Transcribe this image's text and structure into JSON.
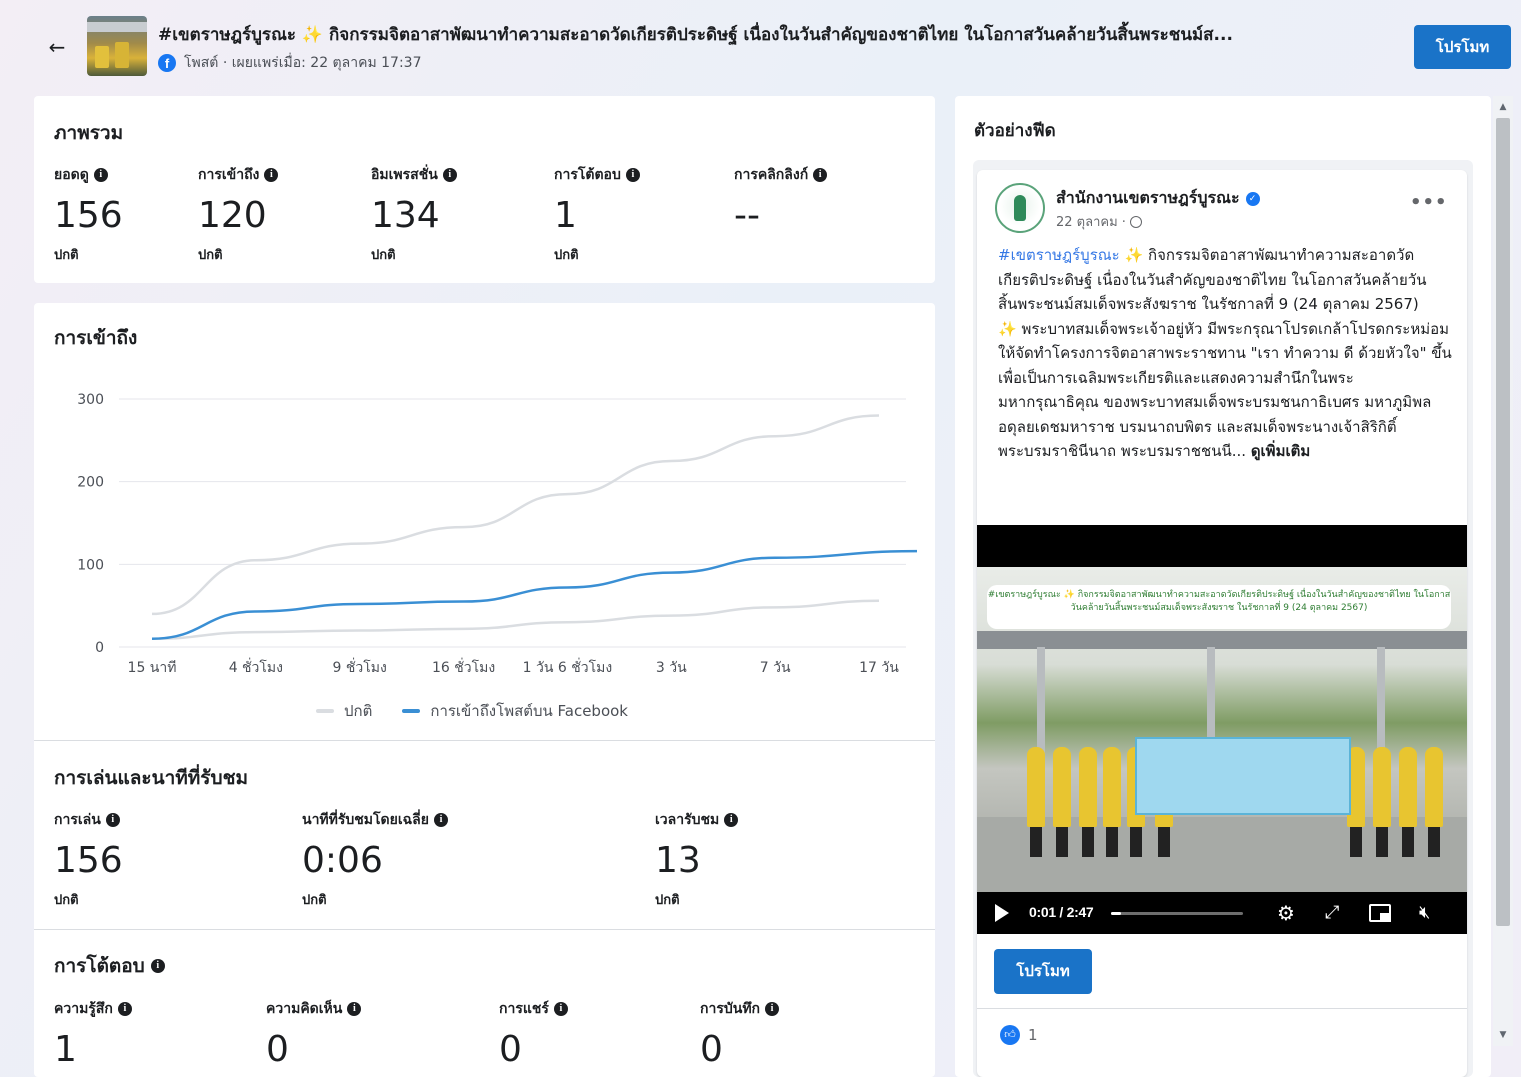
{
  "header": {
    "post_title": "#เขตราษฎร์บูรณะ ✨ กิจกรรมจิตอาสาพัฒนาทำความสะอาดวัดเกียรติประดิษฐ์ เนื่องในวันสำคัญของชาติไทย ในโอกาสวันคล้ายวันสิ้นพระชนม์ส...",
    "post_type": "โพสต์ · เผยแพร่เมื่อ: 22 ตุลาคม 17:37",
    "promote_label": "โปรโมท"
  },
  "overview": {
    "title": "ภาพรวม",
    "metrics": [
      {
        "label": "ยอดดู",
        "value": "156",
        "sub": "ปกติ"
      },
      {
        "label": "การเข้าถึง",
        "value": "120",
        "sub": "ปกติ"
      },
      {
        "label": "อิมเพรสชั่น",
        "value": "134",
        "sub": "ปกติ"
      },
      {
        "label": "การโต้ตอบ",
        "value": "1",
        "sub": "ปกติ"
      },
      {
        "label": "การคลิกลิงก์",
        "value": "--",
        "sub": ""
      }
    ]
  },
  "reach": {
    "title": "การเข้าถึง"
  },
  "chart_data": {
    "type": "line",
    "title": "การเข้าถึง",
    "x": [
      "15 นาที",
      "4 ชั่วโมง",
      "9 ชั่วโมง",
      "16 ชั่วโมง",
      "1 วัน 6 ชั่วโมง",
      "3 วัน",
      "7 วัน",
      "17 วัน"
    ],
    "yticks": [
      0,
      100,
      200,
      300
    ],
    "ylim": [
      0,
      300
    ],
    "grid": true,
    "legend_position": "bottom",
    "series": [
      {
        "name": "ปกติ",
        "color": "#dadde1",
        "band": "upper",
        "values": [
          40,
          105,
          125,
          145,
          185,
          225,
          255,
          280
        ]
      },
      {
        "name": "ปกติ",
        "color": "#dadde1",
        "band": "lower",
        "values": [
          10,
          18,
          20,
          22,
          30,
          38,
          48,
          56
        ]
      },
      {
        "name": "การเข้าถึงโพสต์บน Facebook",
        "color": "#3a8fd4",
        "values": [
          10,
          43,
          52,
          55,
          72,
          90,
          108,
          116
        ]
      }
    ],
    "legend": [
      {
        "label": "ปกติ",
        "color": "#dadde1"
      },
      {
        "label": "การเข้าถึงโพสต์บน Facebook",
        "color": "#3a8fd4"
      }
    ]
  },
  "plays": {
    "title": "การเล่นและนาทีที่รับชม",
    "metrics": [
      {
        "label": "การเล่น",
        "value": "156",
        "sub": "ปกติ"
      },
      {
        "label": "นาทีที่รับชมโดยเฉลี่ย",
        "value": "0:06",
        "sub": "ปกติ"
      },
      {
        "label": "เวลารับชม",
        "value": "13",
        "sub": "ปกติ"
      }
    ]
  },
  "engagement": {
    "title": "การโต้ตอบ",
    "metrics": [
      {
        "label": "ความรู้สึก",
        "value": "1"
      },
      {
        "label": "ความคิดเห็น",
        "value": "0"
      },
      {
        "label": "การแชร์",
        "value": "0"
      },
      {
        "label": "การบันทึก",
        "value": "0"
      }
    ]
  },
  "preview": {
    "title": "ตัวอย่างฟีด",
    "page_name": "สำนักงานเขตราษฎร์บูรณะ",
    "date": "22 ตุลาคม ·",
    "hashtag": "#เขตราษฎร์บูรณะ",
    "sparkle": "✨",
    "text_line1": " กิจกรรมจิตอาสาพัฒนาทำความสะอาดวัดเกียรติประดิษฐ์ เนื่องในวันสำคัญของชาติไทย ในโอกาสวันคล้ายวันสิ้นพระชนม์สมเด็จพระสังฆราช ในรัชกาลที่ 9 (24 ตุลาคม 2567)",
    "text_line2": " พระบาทสมเด็จพระเจ้าอยู่หัว มีพระกรุณาโปรดเกล้าโปรดกระหม่อม ให้จัดทำโครงการจิตอาสาพระราชทาน \"เรา ทำความ ดี ด้วยหัวใจ\" ขึ้น เพื่อเป็นการเฉลิมพระเกียรติและแสดงความสำนึกในพระมหากรุณาธิคุณ ของพระบาทสมเด็จพระบรมชนกาธิเบศร มหาภูมิพลอดุลยเดชมหาราช บรมนาถบพิตร และสมเด็จพระนางเจ้าสิริกิติ์ พระบรมราชินีนาถ พระบรมราชชนนี...",
    "see_more": "ดูเพิ่มเติม",
    "video_banner": "#เขตราษฎร์บูรณะ ✨ กิจกรรมจิตอาสาพัฒนาทำความสะอาดวัดเกียรติประดิษฐ์ เนื่องในวันสำคัญของชาติไทย ในโอกาสวันคล้ายวันสิ้นพระชนม์สมเด็จพระสังฆราช ในรัชกาลที่ 9 (24 ตุลาคม 2567)",
    "video_time": "0:01 / 2:47",
    "video_progress": 0.006,
    "promote_label": "โปรโมท",
    "like_count": "1"
  }
}
